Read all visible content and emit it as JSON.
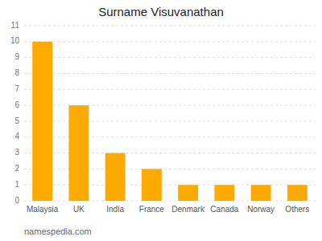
{
  "chart_data": {
    "type": "bar",
    "title": "Surname Visuvanathan",
    "categories": [
      "Malaysia",
      "UK",
      "India",
      "France",
      "Denmark",
      "Canada",
      "Norway",
      "Others"
    ],
    "values": [
      10,
      6,
      3,
      2,
      1,
      1,
      1,
      1
    ],
    "color": "#FFAA00",
    "ylim": [
      0,
      11
    ],
    "yticks": [
      0,
      1,
      2,
      3,
      4,
      5,
      6,
      7,
      8,
      9,
      10,
      11
    ],
    "grid": true,
    "footnote": "namespedia.com"
  }
}
